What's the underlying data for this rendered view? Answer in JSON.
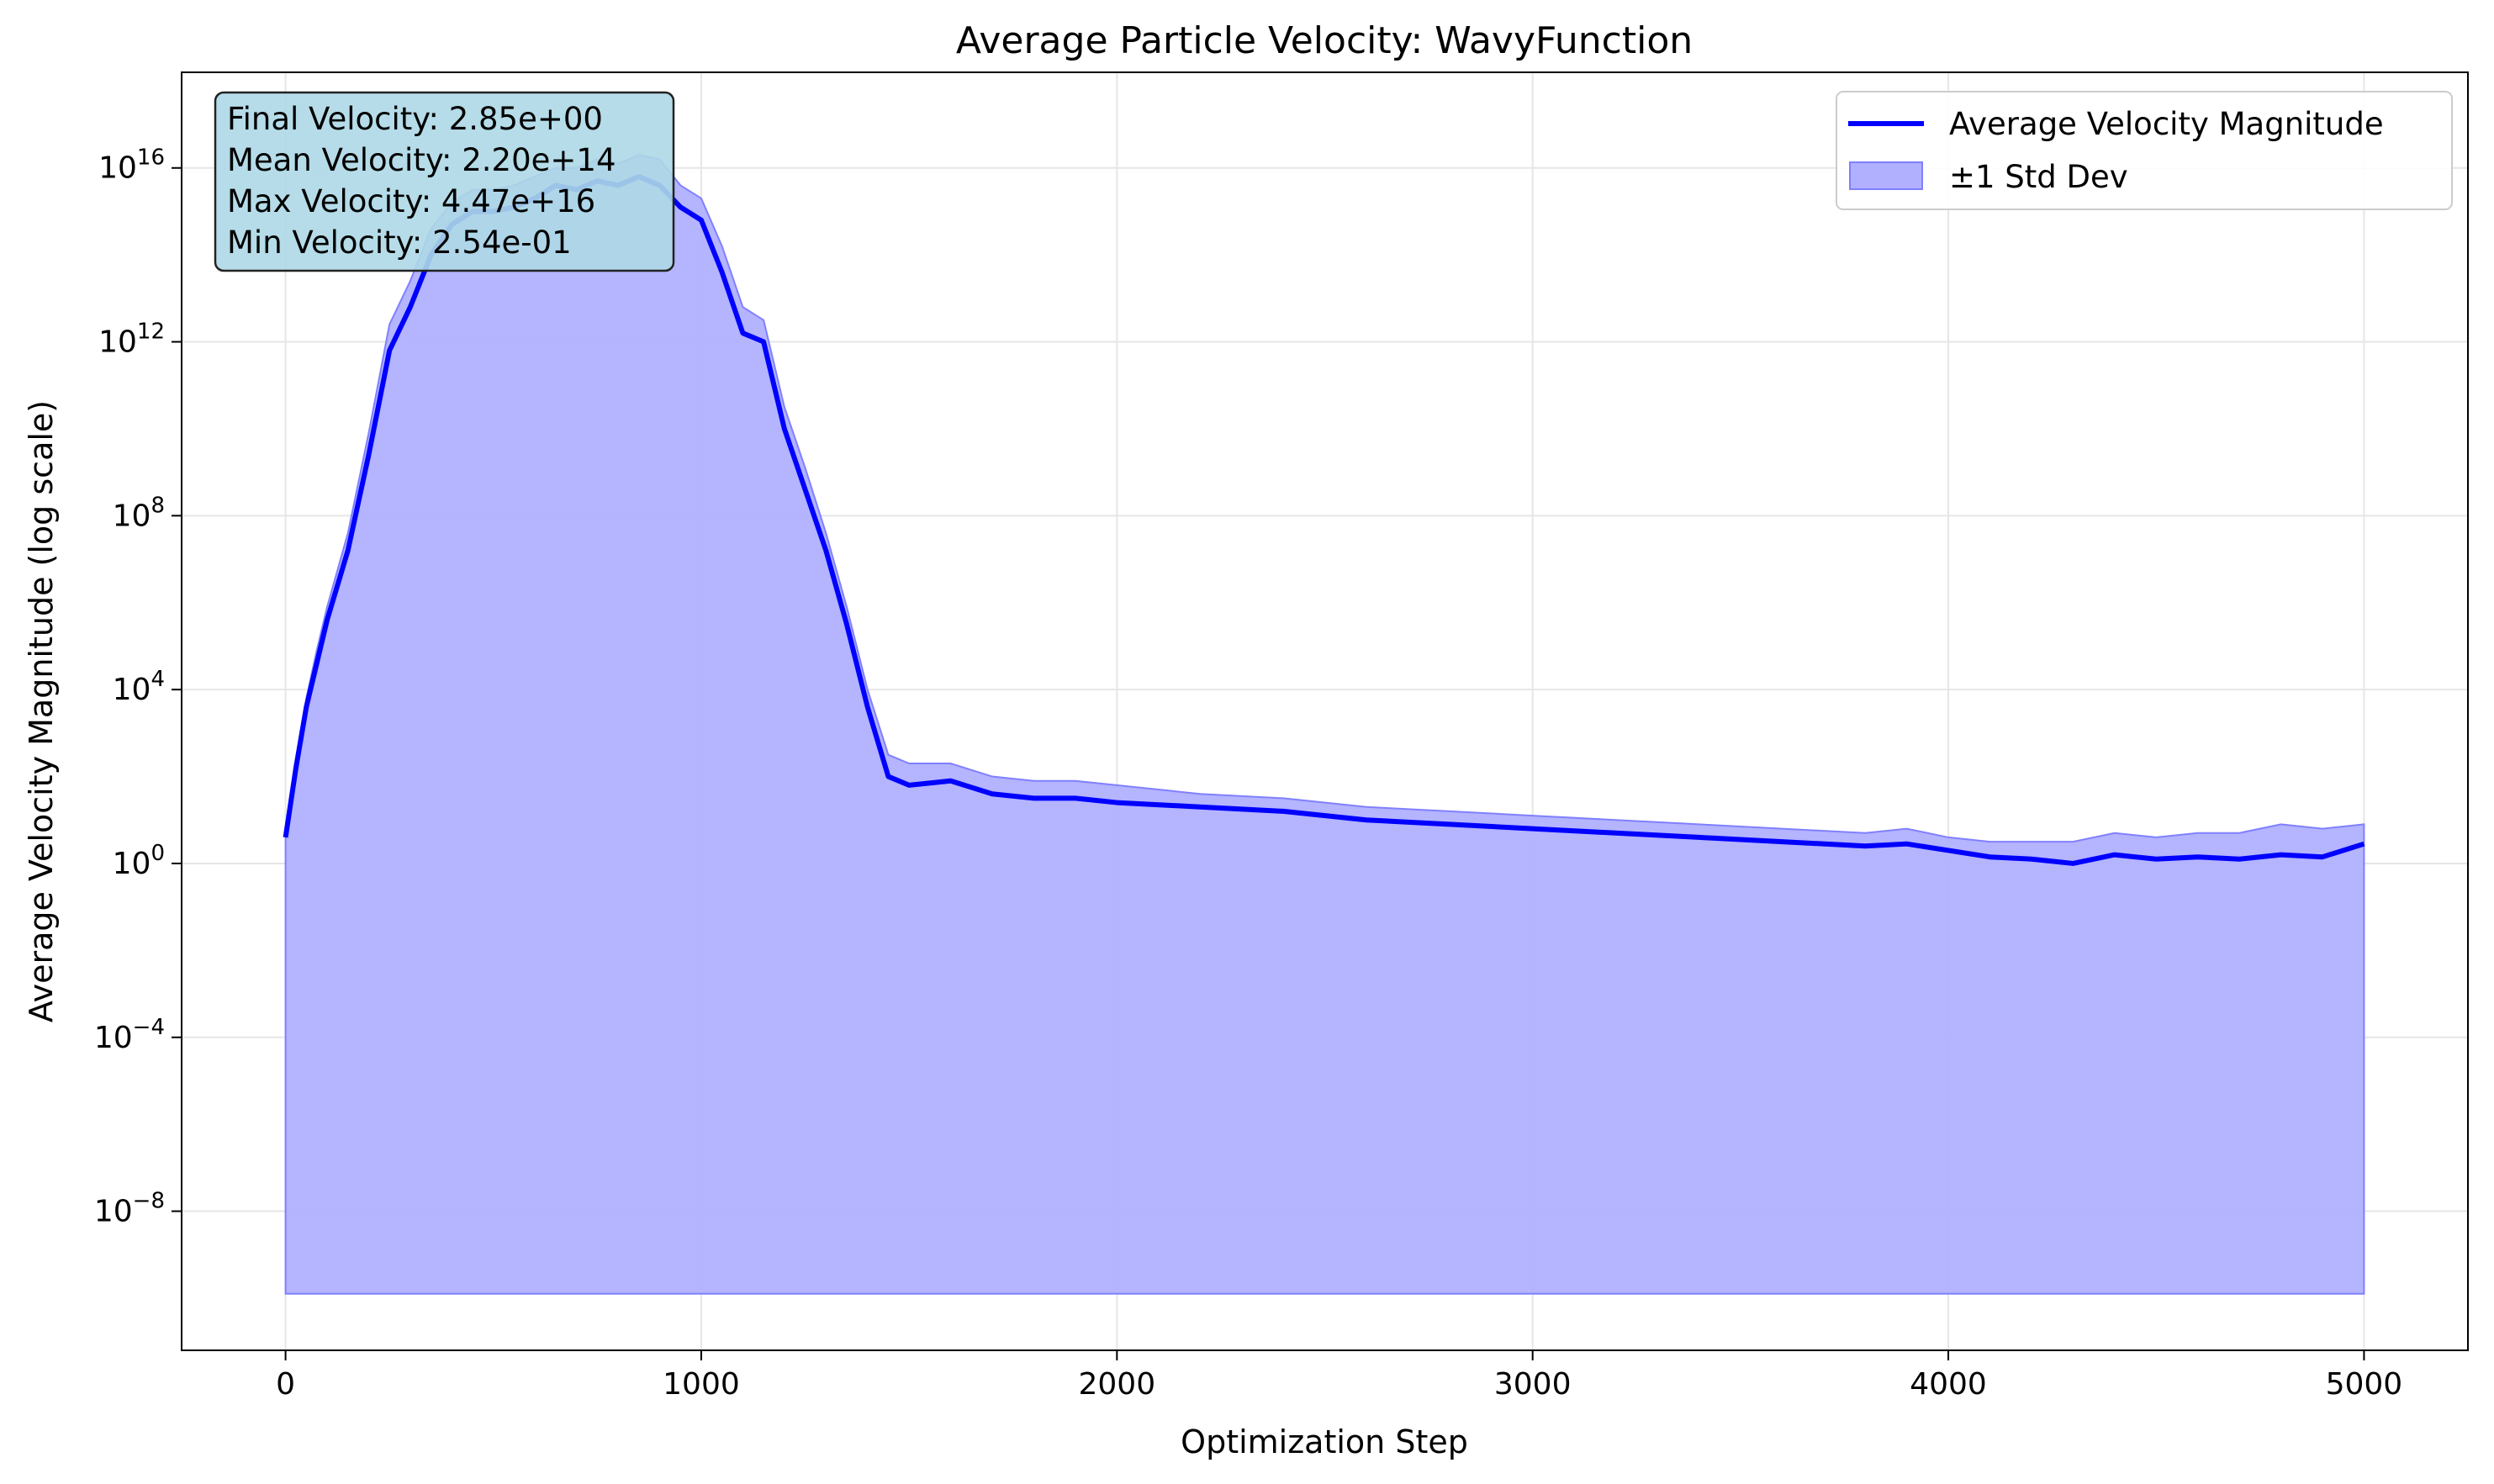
{
  "chart_data": {
    "type": "line",
    "title": "Average Particle Velocity: WavyFunction",
    "xlabel": "Optimization Step",
    "ylabel": "Average Velocity Magnitude (log scale)",
    "yscale": "log",
    "xlim": [
      -250,
      5250
    ],
    "ylim_log10": [
      -11.2,
      18.2
    ],
    "x_ticks": [
      0,
      1000,
      2000,
      3000,
      4000,
      5000
    ],
    "x_tick_labels": [
      "0",
      "1000",
      "2000",
      "3000",
      "4000",
      "5000"
    ],
    "y_ticks": [
      {
        "base": "10",
        "exp": "16",
        "value": 16
      },
      {
        "base": "10",
        "exp": "12",
        "value": 12
      },
      {
        "base": "10",
        "exp": "8",
        "value": 8
      },
      {
        "base": "10",
        "exp": "4",
        "value": 4
      },
      {
        "base": "10",
        "exp": "0",
        "value": 0
      },
      {
        "base": "10",
        "exp": "−4",
        "value": -4
      },
      {
        "base": "10",
        "exp": "−8",
        "value": -8
      }
    ],
    "grid": true,
    "legend_position": "top-right",
    "colors": {
      "line": "#0000ff",
      "band": "#b0b0ff",
      "band_edge": "#8080ff",
      "stats_box": "#add8e6"
    },
    "series": [
      {
        "name": "Average Velocity Magnitude",
        "x": [
          0,
          25,
          50,
          75,
          100,
          150,
          200,
          250,
          300,
          350,
          400,
          450,
          500,
          550,
          600,
          650,
          700,
          750,
          800,
          850,
          900,
          950,
          1000,
          1050,
          1100,
          1150,
          1200,
          1250,
          1300,
          1350,
          1400,
          1450,
          1500,
          1600,
          1700,
          1800,
          1900,
          2000,
          2200,
          2400,
          2600,
          2800,
          3000,
          3200,
          3400,
          3600,
          3800,
          3900,
          4000,
          4100,
          4200,
          4300,
          4400,
          4500,
          4600,
          4700,
          4800,
          4900,
          5000
        ],
        "log10_values": [
          0.6,
          2.2,
          3.6,
          4.6,
          5.6,
          7.2,
          9.4,
          11.8,
          12.8,
          14.0,
          14.7,
          15.0,
          15.0,
          15.1,
          15.3,
          15.6,
          15.5,
          15.7,
          15.6,
          15.8,
          15.6,
          15.1,
          14.8,
          13.6,
          12.2,
          12.0,
          10.0,
          8.6,
          7.2,
          5.5,
          3.6,
          2.0,
          1.8,
          1.9,
          1.6,
          1.5,
          1.5,
          1.4,
          1.3,
          1.2,
          1.0,
          0.9,
          0.8,
          0.7,
          0.6,
          0.5,
          0.4,
          0.45,
          0.3,
          0.15,
          0.1,
          0.0,
          0.2,
          0.1,
          0.15,
          0.1,
          0.2,
          0.15,
          0.45
        ]
      },
      {
        "name": "±1 Std Dev",
        "x": [
          0,
          25,
          50,
          75,
          100,
          150,
          200,
          250,
          300,
          350,
          400,
          450,
          500,
          550,
          600,
          650,
          700,
          750,
          800,
          850,
          900,
          950,
          1000,
          1050,
          1100,
          1150,
          1200,
          1250,
          1300,
          1350,
          1400,
          1450,
          1500,
          1600,
          1700,
          1800,
          1900,
          2000,
          2200,
          2400,
          2600,
          2800,
          3000,
          3200,
          3400,
          3600,
          3800,
          3900,
          4000,
          4100,
          4200,
          4300,
          4400,
          4500,
          4600,
          4700,
          4800,
          4900,
          5000
        ],
        "log10_upper": [
          0.6,
          2.3,
          3.8,
          4.9,
          5.9,
          7.6,
          9.9,
          12.4,
          13.4,
          14.6,
          15.2,
          15.5,
          15.5,
          15.6,
          15.8,
          16.0,
          16.0,
          16.2,
          16.1,
          16.3,
          16.2,
          15.6,
          15.3,
          14.2,
          12.8,
          12.5,
          10.5,
          9.1,
          7.6,
          5.9,
          4.0,
          2.5,
          2.3,
          2.3,
          2.0,
          1.9,
          1.9,
          1.8,
          1.6,
          1.5,
          1.3,
          1.2,
          1.1,
          1.0,
          0.9,
          0.8,
          0.7,
          0.8,
          0.6,
          0.5,
          0.5,
          0.5,
          0.7,
          0.6,
          0.7,
          0.7,
          0.9,
          0.8,
          0.9
        ],
        "log10_lower_floor": -9.9
      }
    ],
    "legend_entries": [
      "Average Velocity Magnitude",
      "±1 Std Dev"
    ],
    "annotations": [
      "Final Velocity: 2.85e+00",
      "Mean Velocity: 2.20e+14",
      "Max Velocity: 4.47e+16",
      "Min Velocity: 2.54e-01"
    ]
  }
}
